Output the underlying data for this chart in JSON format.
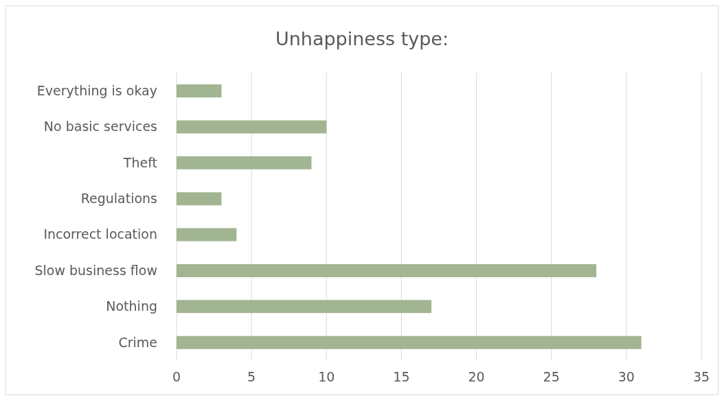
{
  "chart_data": {
    "type": "bar",
    "orientation": "horizontal",
    "title": "Unhappiness type:",
    "categories": [
      "Everything is okay",
      "No basic services",
      "Theft",
      "Regulations",
      "Incorrect location",
      "Slow business flow",
      "Nothing",
      "Crime"
    ],
    "values": [
      3,
      10,
      9,
      3,
      4,
      28,
      17,
      31
    ],
    "color": "#a2b592",
    "xlim": [
      0,
      35
    ],
    "xticks": [
      0,
      5,
      10,
      15,
      20,
      25,
      30,
      35
    ],
    "grid": "x",
    "legend": false
  }
}
